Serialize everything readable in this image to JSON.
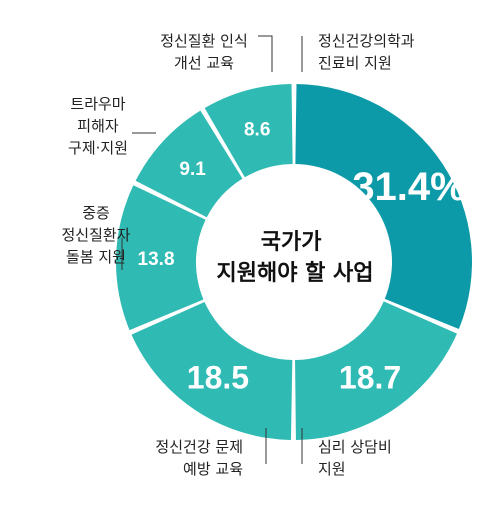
{
  "chart_data": {
    "type": "pie",
    "title": "국가가 지원해야 할 사업",
    "title_lines": [
      "국가가",
      "지원해야 할 사업"
    ],
    "slices": [
      {
        "label": "정신건강의학과 진료비 지원",
        "label_lines": [
          "정신건강의학과",
          "진료비 지원"
        ],
        "value": 31.4,
        "display": "31.4%",
        "color": "#0d9aa8"
      },
      {
        "label": "심리 상담비 지원",
        "label_lines": [
          "심리 상담비",
          "지원"
        ],
        "value": 18.7,
        "display": "18.7",
        "color": "#2fbab3"
      },
      {
        "label": "정신건강 문제 예방 교육",
        "label_lines": [
          "정신건강 문제",
          "예방 교육"
        ],
        "value": 18.5,
        "display": "18.5",
        "color": "#2fbab3"
      },
      {
        "label": "중증 정신질환자 돌봄 지원",
        "label_lines": [
          "중증",
          "정신질환자",
          "돌봄 지원"
        ],
        "value": 13.8,
        "display": "13.8",
        "color": "#2fbab3"
      },
      {
        "label": "트라우마 피해자 구제·지원",
        "label_lines": [
          "트라우마",
          "피해자",
          "구제·지원"
        ],
        "value": 9.1,
        "display": "9.1",
        "color": "#2fbab3"
      },
      {
        "label": "정신질환 인식 개선 교육",
        "label_lines": [
          "정신질환 인식",
          "개선 교육"
        ],
        "value": 8.6,
        "display": "8.6",
        "color": "#2fbab3"
      }
    ]
  }
}
